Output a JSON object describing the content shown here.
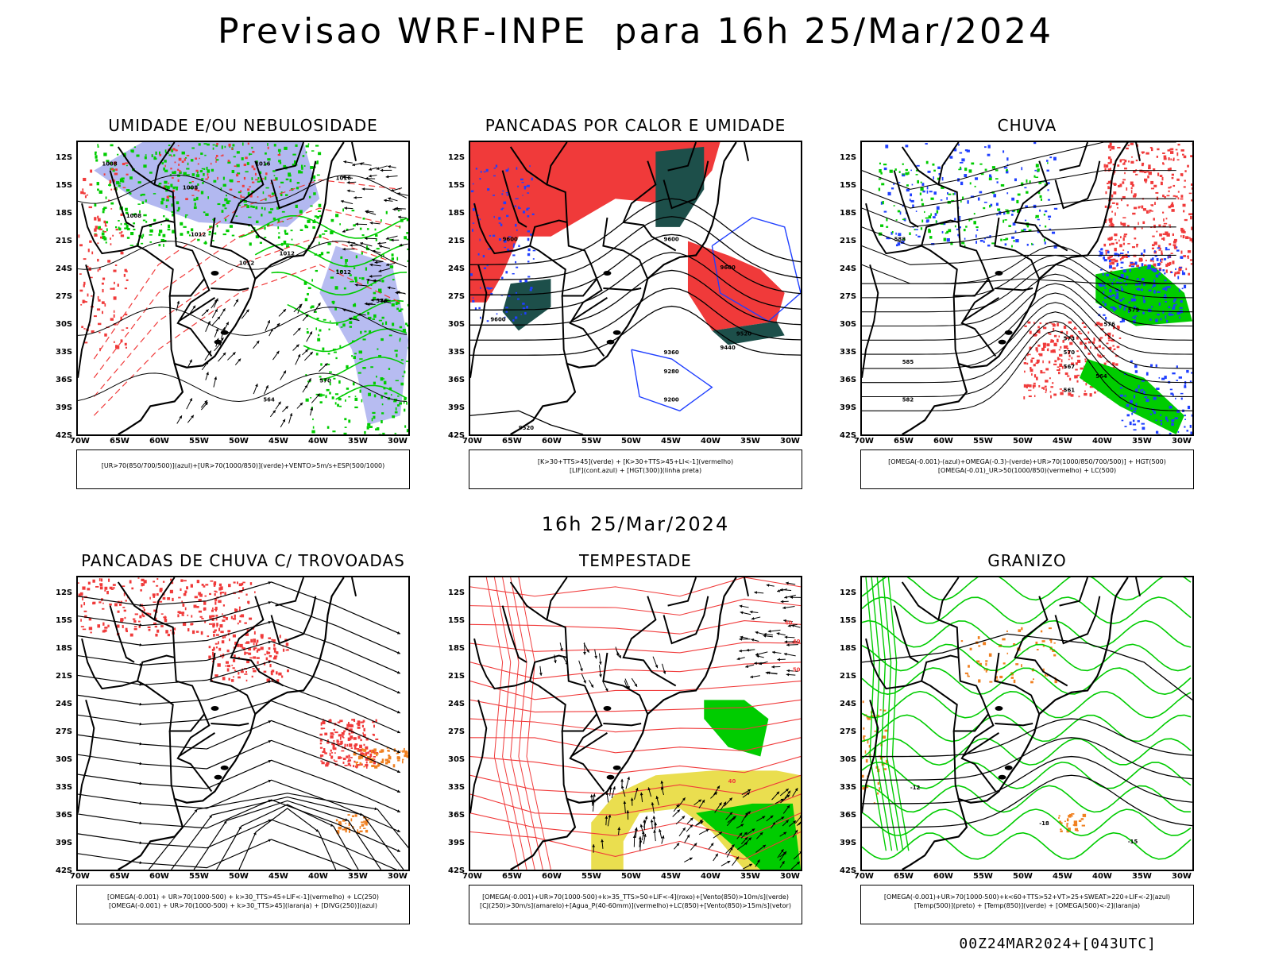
{
  "title": "Previsao WRF-INPE  para 16h 25/Mar/2024",
  "mid_title": "16h 25/Mar/2024",
  "footer": "00Z24MAR2024+[043UTC]",
  "lat_labels": [
    "12S",
    "15S",
    "18S",
    "21S",
    "24S",
    "27S",
    "30S",
    "33S",
    "36S",
    "39S",
    "42S"
  ],
  "lon_labels": [
    "70W",
    "65W",
    "60W",
    "55W",
    "50W",
    "45W",
    "40W",
    "35W",
    "30W"
  ],
  "colors": {
    "red": "#f03a3a",
    "green": "#00cc00",
    "blue": "#1f3fff",
    "lavender": "#aab0ee",
    "orange": "#f08020",
    "dark_teal": "#1d4f4a",
    "yellow": "#e6d830",
    "black": "#000000"
  },
  "panels": [
    {
      "id": "umidade",
      "title": "UMIDADE E/OU NEBULOSIDADE",
      "legend": [
        "[UR>70(850/700/500)](azul)+[UR>70(1000/850)](verde)+VENTO>5m/s+ESP(500/1000)"
      ],
      "contour_labels": [
        "1008",
        "1008",
        "1008",
        "1012",
        "1012",
        "1012",
        "1016",
        "1016",
        "1012",
        "576",
        "570",
        "564",
        "558",
        "552",
        "576",
        "570"
      ]
    },
    {
      "id": "pancadas_calor",
      "title": "PANCADAS POR CALOR E UMIDADE",
      "legend": [
        "[K>30+TTS>45](verde) + [K>30+TTS>45+LI<-1](vermelho)",
        "[LIF](cont.azul) + [HGT(300)](linha preta)"
      ],
      "contour_labels": [
        "9600",
        "9600",
        "9600",
        "9520",
        "9440",
        "9360",
        "9280",
        "9200",
        "9600",
        "9520"
      ]
    },
    {
      "id": "chuva",
      "title": "CHUVA",
      "legend": [
        "[OMEGA(-0.001)-(azul)+OMEGA(-0.3)-(verde)+UR>70(1000/850/700/500)] + HGT(500)",
        "[OMEGA(-0.01)_UR>50(1000/850)(vermelho) + LC(500)"
      ],
      "contour_labels": [
        "588",
        "585",
        "582",
        "579",
        "576",
        "573",
        "570",
        "567",
        "561",
        "564"
      ]
    },
    {
      "id": "pancadas_trovoadas",
      "title": "PANCADAS DE CHUVA C/ TROVOADAS",
      "legend": [
        "[OMEGA(-0.001) + UR>70(1000-500) + k>30_TTS>45+LIF<-1](vermelho) + LC(250)",
        "[OMEGA(-0.001) + UR>70(1000-500) + k>30_TTS>45](laranja) + [DIVG(250)](azul)"
      ],
      "contour_labels": []
    },
    {
      "id": "tempestade",
      "title": "TEMPESTADE",
      "legend": [
        "[OMEGA(-0.001)+UR>70(1000-500)+k>35_TTS>50+LIF<-4](roxo)+[Vento(850)>10m/s](verde)",
        "[CJ(250)>30m/s](amarelo)+[Agua_P(40-60mm)](vermelho)+LC(850)+[Vento(850)>15m/s](vetor)"
      ],
      "contour_labels": [
        "40",
        "40",
        "50",
        "40"
      ]
    },
    {
      "id": "granizo",
      "title": "GRANIZO",
      "legend": [
        "[OMEGA(-0.001)+UR>70(1000-500)+k<60+TTS>52+VT>25+SWEAT>220+LIF<-2](azul)",
        "[Temp(500)](preto) + [Temp(850)](verde) + [OMEGA(500)<-2](laranja)"
      ],
      "contour_labels": [
        "-18",
        "-15",
        "-12"
      ]
    }
  ]
}
